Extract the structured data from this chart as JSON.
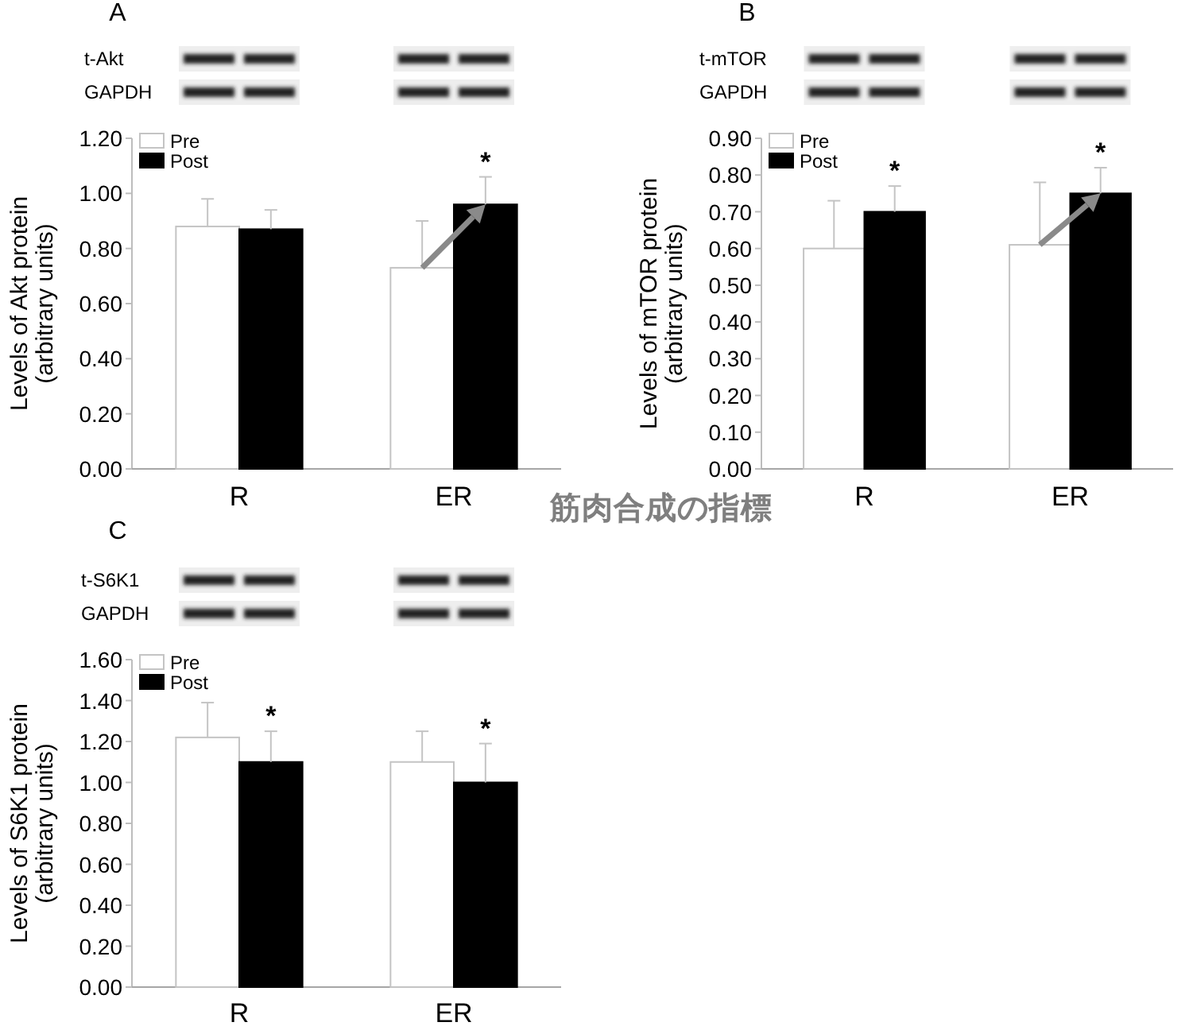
{
  "chart_data": [
    {
      "type": "bar",
      "title": "A",
      "ylabel": "Levels of Akt protein\n(arbitrary units)",
      "categories": [
        "R",
        "ER"
      ],
      "series": [
        {
          "name": "Pre",
          "color": "#ffffff",
          "values": [
            0.88,
            0.73
          ],
          "errors": [
            [
              0.88,
              0.98
            ],
            [
              0.73,
              0.9
            ]
          ]
        },
        {
          "name": "Post",
          "color": "#000000",
          "values": [
            0.87,
            0.96
          ],
          "errors": [
            [
              0.87,
              0.94
            ],
            [
              0.96,
              1.06
            ]
          ],
          "value_labels": [
            null,
            "*"
          ]
        }
      ],
      "ylim": [
        0,
        1.2
      ],
      "yticks": [
        {
          "value": 0,
          "label": "0.00"
        },
        {
          "value": 0.2,
          "label": "0.20"
        },
        {
          "value": 0.4,
          "label": "0.40"
        },
        {
          "value": 0.6,
          "label": "0.60"
        },
        {
          "value": 0.8,
          "label": "0.80"
        },
        {
          "value": 1.0,
          "label": "1.00"
        },
        {
          "value": 1.2,
          "label": "1.20"
        }
      ],
      "legend": "top left",
      "annotations": [
        "t-Akt",
        "GAPDH"
      ]
    },
    {
      "type": "bar",
      "title": "B",
      "ylabel": "Levels of mTOR protein\n(arbitrary units)",
      "categories": [
        "R",
        "ER"
      ],
      "series": [
        {
          "name": "Pre",
          "color": "#ffffff",
          "values": [
            0.6,
            0.61
          ],
          "errors": [
            [
              0.6,
              0.73
            ],
            [
              0.61,
              0.78
            ]
          ]
        },
        {
          "name": "Post",
          "color": "#000000",
          "values": [
            0.7,
            0.75
          ],
          "errors": [
            [
              0.7,
              0.77
            ],
            [
              0.75,
              0.82
            ]
          ],
          "value_labels": [
            "*",
            "*"
          ]
        }
      ],
      "ylim": [
        0,
        0.9
      ],
      "yticks": [
        {
          "value": 0,
          "label": "0.00"
        },
        {
          "value": 0.1,
          "label": "0.10"
        },
        {
          "value": 0.2,
          "label": "0.20"
        },
        {
          "value": 0.3,
          "label": "0.30"
        },
        {
          "value": 0.4,
          "label": "0.40"
        },
        {
          "value": 0.5,
          "label": "0.50"
        },
        {
          "value": 0.6,
          "label": "0.60"
        },
        {
          "value": 0.7,
          "label": "0.70"
        },
        {
          "value": 0.8,
          "label": "0.80"
        },
        {
          "value": 0.9,
          "label": "0.90"
        }
      ],
      "legend": "top left",
      "annotations": [
        "t-mTOR",
        "GAPDH"
      ]
    },
    {
      "type": "bar",
      "title": "C",
      "ylabel": "Levels of S6K1 protein\n(arbitrary units)",
      "categories": [
        "R",
        "ER"
      ],
      "series": [
        {
          "name": "Pre",
          "color": "#ffffff",
          "values": [
            1.22,
            1.1
          ],
          "errors": [
            [
              1.22,
              1.39
            ],
            [
              1.1,
              1.25
            ]
          ]
        },
        {
          "name": "Post",
          "color": "#000000",
          "values": [
            1.1,
            1.0
          ],
          "errors": [
            [
              1.1,
              1.25
            ],
            [
              1.0,
              1.19
            ]
          ],
          "value_labels": [
            "*",
            "*"
          ]
        }
      ],
      "ylim": [
        0,
        1.6
      ],
      "yticks": [
        {
          "value": 0,
          "label": "0.00"
        },
        {
          "value": 0.2,
          "label": "0.20"
        },
        {
          "value": 0.4,
          "label": "0.40"
        },
        {
          "value": 0.6,
          "label": "0.60"
        },
        {
          "value": 0.8,
          "label": "0.80"
        },
        {
          "value": 1.0,
          "label": "1.00"
        },
        {
          "value": 1.2,
          "label": "1.20"
        },
        {
          "value": 1.4,
          "label": "1.40"
        },
        {
          "value": 1.6,
          "label": "1.60"
        }
      ],
      "legend": "top left",
      "annotations": [
        "t-S6K1",
        "GAPDH"
      ]
    },
    {
      "type": "other",
      "title": "筋肉合成の指標"
    }
  ]
}
